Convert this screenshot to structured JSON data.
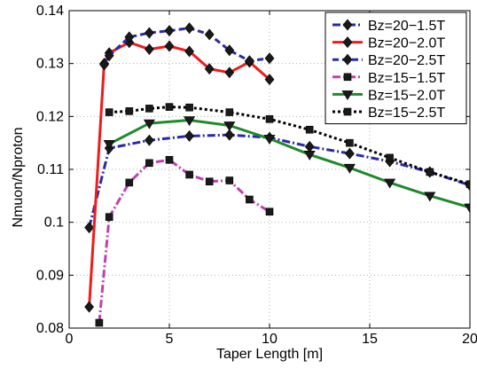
{
  "chart_data": {
    "type": "line",
    "title": "",
    "xlabel": "Taper Length [m]",
    "ylabel": "Nmuon/Nproton",
    "xlim": [
      0,
      20
    ],
    "ylim": [
      0.08,
      0.14
    ],
    "x_ticks": [
      0,
      5,
      10,
      15,
      20
    ],
    "y_ticks": [
      0.08,
      0.09,
      0.1,
      0.11,
      0.12,
      0.13,
      0.14
    ],
    "x_tick_labels": [
      "0",
      "5",
      "10",
      "15",
      "20"
    ],
    "y_tick_labels": [
      "0.08",
      "0.09",
      "0.1",
      "0.11",
      "0.12",
      "0.13",
      "0.14"
    ],
    "grid": true,
    "legend_position": "top-right",
    "series": [
      {
        "name": "Bz=20−1.5T",
        "color": "#2a2aa8",
        "line_style": "dashdot",
        "marker": "diamond",
        "x": [
          1,
          2,
          4,
          6,
          8,
          10,
          12,
          14,
          16,
          18,
          20
        ],
        "y": [
          0.099,
          0.114,
          0.1155,
          0.1163,
          0.1165,
          0.116,
          0.1143,
          0.113,
          0.1115,
          0.1095,
          0.107
        ]
      },
      {
        "name": "Bz=20−2.0T",
        "color": "#ee1c1c",
        "line_style": "solid",
        "marker": "diamond",
        "x": [
          1,
          1.75,
          2,
          3,
          4,
          5,
          6,
          7,
          8,
          9,
          10
        ],
        "y": [
          0.084,
          0.13,
          0.132,
          0.134,
          0.1327,
          0.1333,
          0.1323,
          0.129,
          0.1283,
          0.1303,
          0.127
        ]
      },
      {
        "name": "Bz=20−2.5T",
        "color": "#2a2aa8",
        "line_style": "dashed",
        "marker": "diamond",
        "x": [
          1.75,
          2,
          3,
          4,
          5,
          6,
          7,
          8,
          9,
          10
        ],
        "y": [
          0.1298,
          0.1315,
          0.135,
          0.1358,
          0.1362,
          0.1367,
          0.1355,
          0.1325,
          0.1305,
          0.131
        ]
      },
      {
        "name": "Bz=15−1.5T",
        "color": "#c040b0",
        "line_style": "dashdot",
        "marker": "square",
        "x": [
          1.5,
          2,
          3,
          4,
          5,
          6,
          7,
          8,
          9,
          10
        ],
        "y": [
          0.081,
          0.101,
          0.1075,
          0.1112,
          0.1118,
          0.109,
          0.1077,
          0.1079,
          0.1043,
          0.102
        ]
      },
      {
        "name": "Bz=15−2.0T",
        "color": "#1f8a2a",
        "line_style": "solid",
        "marker": "triangle-down",
        "x": [
          2,
          4,
          6,
          8,
          10,
          12,
          14,
          16,
          18,
          20
        ],
        "y": [
          0.1148,
          0.1187,
          0.1193,
          0.1183,
          0.1158,
          0.1128,
          0.1103,
          0.1075,
          0.105,
          0.1028
        ]
      },
      {
        "name": "Bz=15−2.5T",
        "color": "#000000",
        "line_style": "dotted",
        "marker": "square",
        "x": [
          2,
          3,
          4,
          5,
          6,
          8,
          10,
          12,
          14,
          16,
          18,
          20
        ],
        "y": [
          0.1208,
          0.121,
          0.1215,
          0.1218,
          0.1217,
          0.1208,
          0.1195,
          0.1175,
          0.115,
          0.1122,
          0.1095,
          0.1072
        ]
      }
    ]
  }
}
